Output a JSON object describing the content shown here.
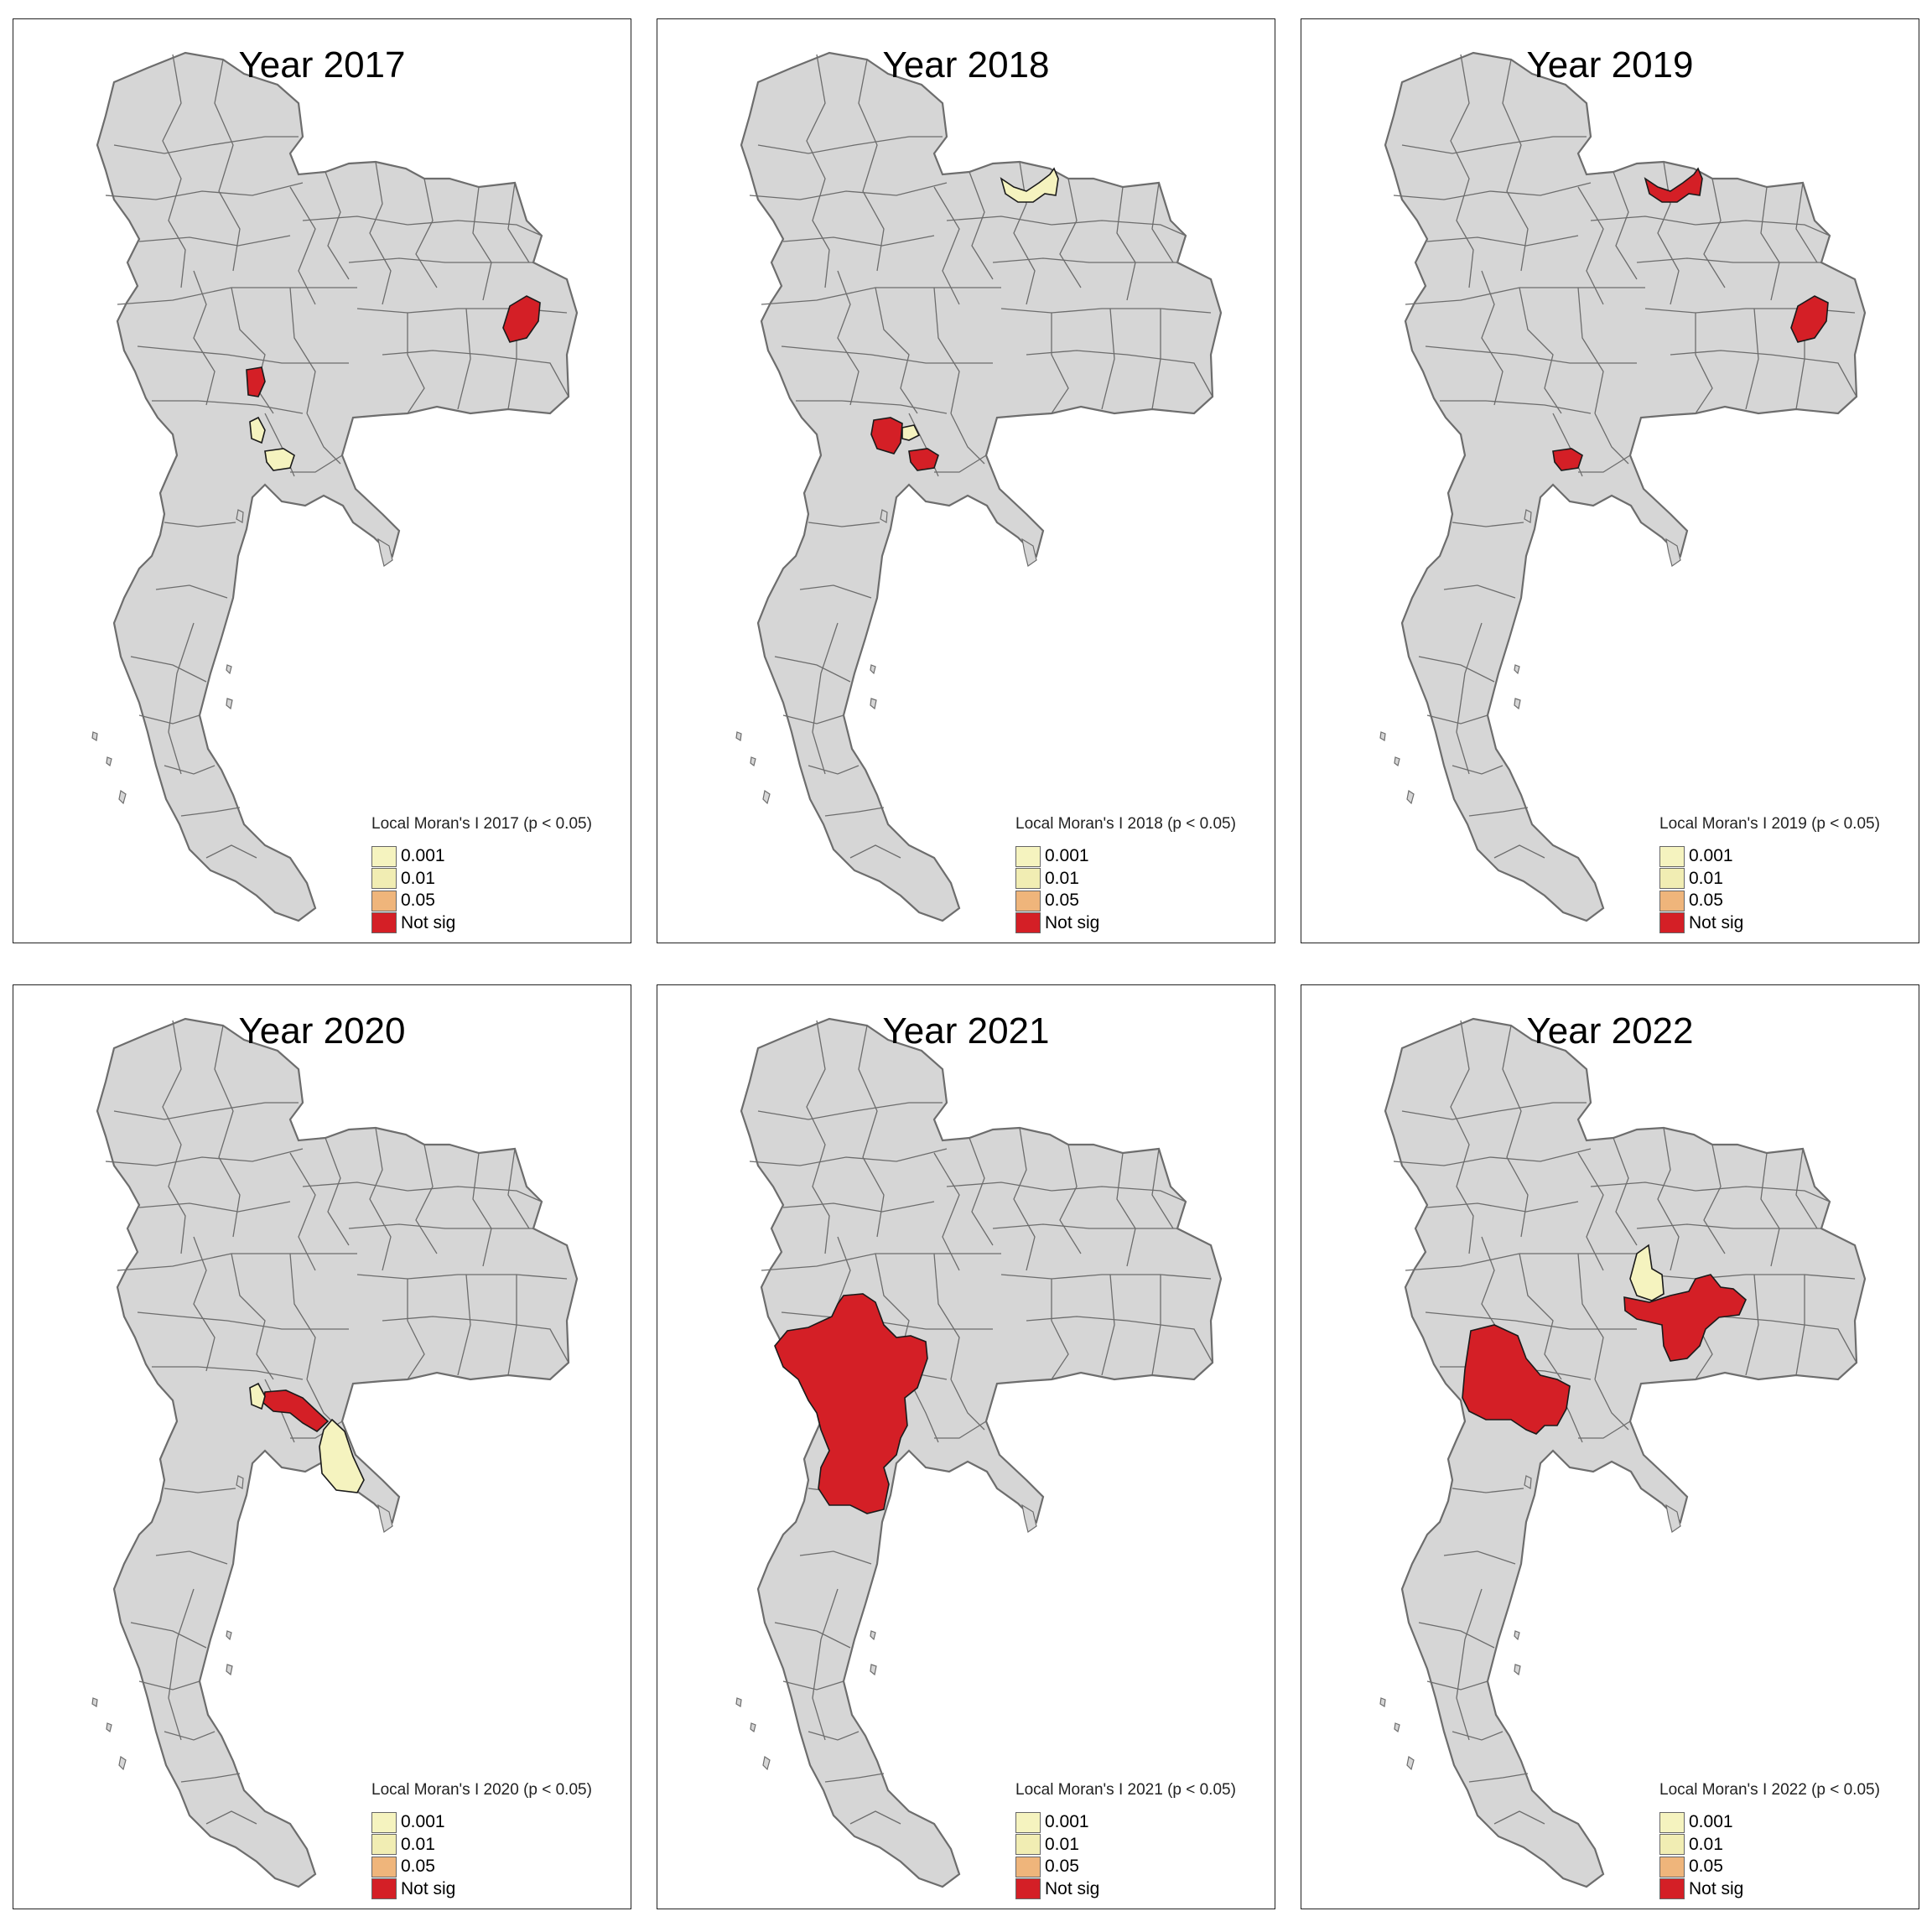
{
  "colors": {
    "land": "#d6d6d6",
    "border": "#6d6d6d",
    "not_sig": "#d41f26",
    "p0001": "#f5f3bf",
    "p001": "#f1edb3",
    "p005": "#efb57b"
  },
  "legend": {
    "items": [
      {
        "label": "0.001",
        "color": "#f5f3bf"
      },
      {
        "label": "0.01",
        "color": "#f1edb3"
      },
      {
        "label": "0.05",
        "color": "#efb57b"
      },
      {
        "label": "Not sig",
        "color": "#d41f26"
      }
    ]
  },
  "panels": [
    {
      "title": "Year 2017",
      "legend_title": "Local Moran's I 2017 (p < 0.05)",
      "highlights": [
        {
          "region": "ne-east",
          "class": "not_sig"
        },
        {
          "region": "central-small",
          "class": "not_sig"
        },
        {
          "region": "bkk-west",
          "class": "p0001"
        },
        {
          "region": "bkk-east",
          "class": "p0001"
        }
      ]
    },
    {
      "title": "Year 2018",
      "legend_title": "Local Moran's I 2018 (p < 0.05)",
      "highlights": [
        {
          "region": "north-border",
          "class": "p0001"
        },
        {
          "region": "bkk-north",
          "class": "not_sig"
        },
        {
          "region": "bkk-mid",
          "class": "p0001"
        },
        {
          "region": "bkk-east",
          "class": "not_sig"
        }
      ]
    },
    {
      "title": "Year 2019",
      "legend_title": "Local Moran's I 2019 (p < 0.05)",
      "highlights": [
        {
          "region": "north-border",
          "class": "not_sig"
        },
        {
          "region": "ne-east",
          "class": "not_sig"
        },
        {
          "region": "bkk-east",
          "class": "not_sig"
        }
      ]
    },
    {
      "title": "Year 2020",
      "legend_title": "Local Moran's I 2020 (p < 0.05)",
      "highlights": [
        {
          "region": "east-arc",
          "class": "not_sig"
        },
        {
          "region": "bkk-west",
          "class": "p0001"
        },
        {
          "region": "east-coast",
          "class": "p0001"
        }
      ]
    },
    {
      "title": "Year 2021",
      "legend_title": "Local Moran's I 2021 (p < 0.05)",
      "highlights": [
        {
          "region": "west-block",
          "class": "not_sig"
        }
      ]
    },
    {
      "title": "Year 2022",
      "legend_title": "Local Moran's I 2022 (p < 0.05)",
      "highlights": [
        {
          "region": "central-block",
          "class": "not_sig"
        },
        {
          "region": "ne-block",
          "class": "not_sig"
        },
        {
          "region": "ne-small",
          "class": "p0001"
        }
      ]
    }
  ]
}
